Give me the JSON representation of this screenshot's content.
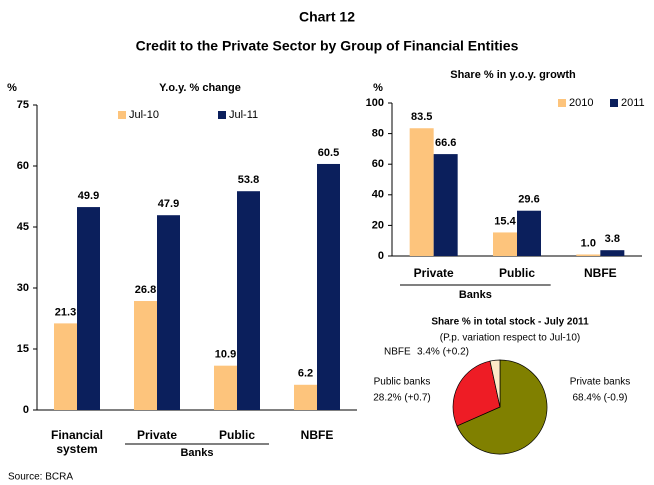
{
  "header": {
    "title": "Chart 12",
    "subtitle": "Credit to the Private Sector by Group of Financial Entities"
  },
  "source": "Source: BCRA",
  "chart_data": [
    {
      "type": "bar",
      "title": "Y.o.y. % change",
      "y_label": "%",
      "categories": [
        "Financial system",
        "Private",
        "Public",
        "NBFE"
      ],
      "group": {
        "label": "Banks",
        "members": [
          "Private",
          "Public"
        ]
      },
      "series": [
        {
          "name": "Jul-10",
          "color": "#fdc47c",
          "values": [
            21.3,
            26.8,
            10.9,
            6.2
          ]
        },
        {
          "name": "Jul-11",
          "color": "#0b1f5c",
          "values": [
            49.9,
            47.9,
            53.8,
            60.5
          ]
        }
      ],
      "ylim": [
        0,
        75
      ],
      "yticks": [
        0,
        15,
        30,
        45,
        60,
        75
      ],
      "legend": "top-left"
    },
    {
      "type": "bar",
      "title": "Share % in y.o.y. growth",
      "y_label": "%",
      "categories": [
        "Private",
        "Public",
        "NBFE"
      ],
      "group": {
        "label": "Banks",
        "members": [
          "Private",
          "Public"
        ]
      },
      "series": [
        {
          "name": "2010",
          "color": "#fdc47c",
          "values": [
            83.5,
            15.4,
            1.0
          ],
          "value_labels": [
            "83.5",
            "15.4",
            "1.0"
          ]
        },
        {
          "name": "2011",
          "color": "#0b1f5c",
          "values": [
            66.6,
            29.6,
            3.8
          ]
        }
      ],
      "ylim": [
        0,
        100
      ],
      "yticks": [
        0,
        20,
        40,
        60,
        80,
        100
      ],
      "legend": "top-right"
    },
    {
      "type": "pie",
      "title": "Share % in total stock - July 2011",
      "subtitle": "(P.p. variation respect to Jul-10)",
      "categories": [
        "Private banks",
        "Public banks",
        "NBFE"
      ],
      "values": [
        68.4,
        28.2,
        3.4
      ],
      "value_labels": [
        "68.4% (-0.9)",
        "28.2% (+0.7)",
        "3.4% (+0.2)"
      ],
      "colors": [
        "#808000",
        "#ee1c25",
        "#fde9c9"
      ]
    }
  ]
}
